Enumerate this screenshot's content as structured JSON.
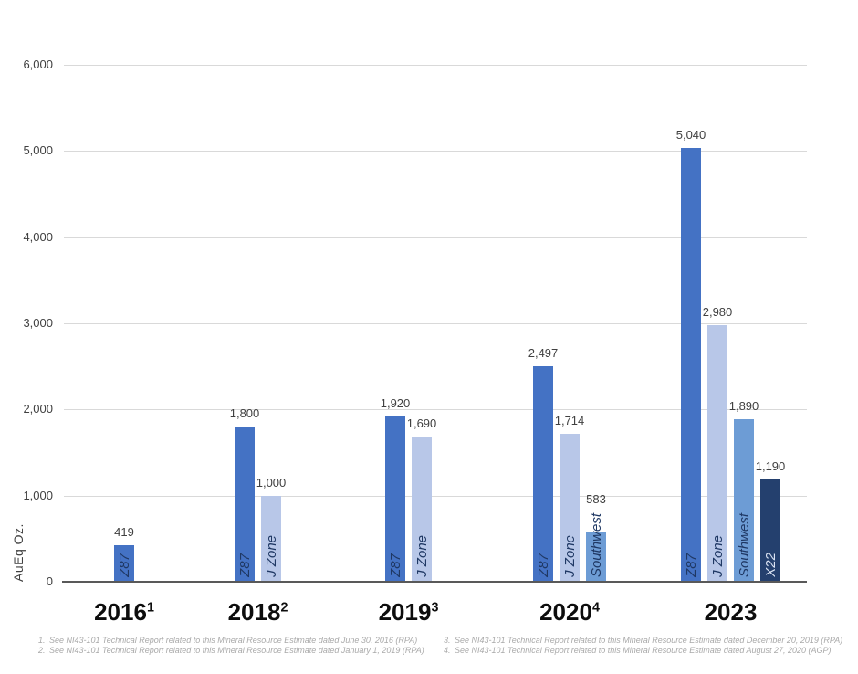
{
  "chart_data": {
    "type": "bar",
    "title": "",
    "ylabel": "AuEq Oz.",
    "ylim": [
      0,
      6000
    ],
    "ytick_interval": 1000,
    "yticks": [
      "6,000",
      "5,000",
      "4,000",
      "3,000",
      "2,000",
      "1,000",
      "0"
    ],
    "grid": "horizontal",
    "legend_position": "none (zone names printed inside bars)",
    "zones": [
      "Z87",
      "J Zone",
      "Southwest",
      "X22"
    ],
    "zone_colors": {
      "Z87": "#4472C4",
      "J Zone": "#B8C7E8",
      "Southwest": "#6D9CD5",
      "X22": "#24406E"
    },
    "zone_label_colors": {
      "Z87": "#1F3864",
      "J Zone": "#1F3864",
      "Southwest": "#1F3864",
      "X22": "#DAE3F3"
    },
    "groups": [
      {
        "category": "2016",
        "superscript": "1",
        "bars": [
          {
            "zone": "Z87",
            "value": 419,
            "label": "419"
          }
        ]
      },
      {
        "category": "2018",
        "superscript": "2",
        "bars": [
          {
            "zone": "Z87",
            "value": 1800,
            "label": "1,800"
          },
          {
            "zone": "J Zone",
            "value": 1000,
            "label": "1,000"
          }
        ]
      },
      {
        "category": "2019",
        "superscript": "3",
        "bars": [
          {
            "zone": "Z87",
            "value": 1920,
            "label": "1,920"
          },
          {
            "zone": "J Zone",
            "value": 1690,
            "label": "1,690"
          }
        ]
      },
      {
        "category": "2020",
        "superscript": "4",
        "bars": [
          {
            "zone": "Z87",
            "value": 2497,
            "label": "2,497"
          },
          {
            "zone": "J Zone",
            "value": 1714,
            "label": "1,714"
          },
          {
            "zone": "Southwest",
            "value": 583,
            "label": "583"
          }
        ]
      },
      {
        "category": "2023",
        "superscript": "",
        "bars": [
          {
            "zone": "Z87",
            "value": 5040,
            "label": "5,040"
          },
          {
            "zone": "J Zone",
            "value": 2980,
            "label": "2,980"
          },
          {
            "zone": "Southwest",
            "value": 1890,
            "label": "1,890"
          },
          {
            "zone": "X22",
            "value": 1190,
            "label": "1,190"
          }
        ]
      }
    ],
    "axis_colors": {
      "gridline": "#d9d9d9",
      "baseline": "#595959",
      "tick_text": "#404040",
      "value_text": "#404040",
      "category_text": "#0d0d0d"
    }
  },
  "footnotes": [
    {
      "n": "1.",
      "text": "See NI43-101 Technical Report related to this Mineral Resource Estimate dated June 30, 2016 (RPA)"
    },
    {
      "n": "2.",
      "text": "See NI43-101 Technical Report related to this Mineral Resource Estimate dated January 1, 2019 (RPA)"
    },
    {
      "n": "3.",
      "text": "See NI43-101 Technical Report related to this Mineral Resource Estimate dated December 20, 2019 (RPA)"
    },
    {
      "n": "4.",
      "text": "See NI43-101 Technical Report related to this Mineral Resource Estimate dated August 27, 2020 (AGP)"
    }
  ]
}
